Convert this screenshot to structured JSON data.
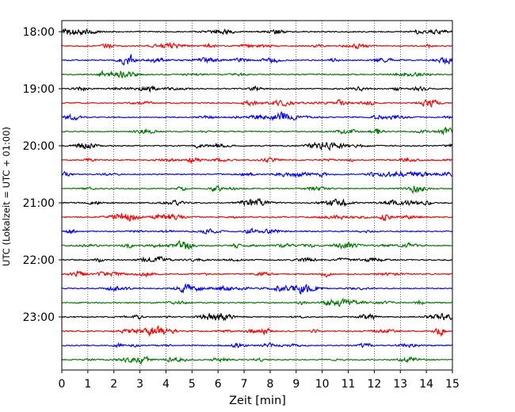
{
  "chart_data": {
    "type": "line",
    "title": "",
    "xlabel": "Zeit  [min]",
    "ylabel": "UTC (Lokalzeit = UTC + 01:00)",
    "xlim": [
      0,
      15
    ],
    "x_ticks": [
      0,
      1,
      2,
      3,
      4,
      5,
      6,
      7,
      8,
      9,
      10,
      11,
      12,
      13,
      14,
      15
    ],
    "y_tick_labels": [
      "18:00",
      "19:00",
      "20:00",
      "21:00",
      "22:00",
      "23:00"
    ],
    "grid": "vertical dotted lines at each minute",
    "trace_interval_min": 15,
    "trace_colors": [
      "#000000",
      "#ff0000",
      "#0000ff",
      "#007700"
    ],
    "traces": [
      {
        "start": "18:00",
        "color": "#000000"
      },
      {
        "start": "18:15",
        "color": "#ff0000"
      },
      {
        "start": "18:30",
        "color": "#0000ff"
      },
      {
        "start": "18:45",
        "color": "#007700"
      },
      {
        "start": "19:00",
        "color": "#000000"
      },
      {
        "start": "19:15",
        "color": "#ff0000"
      },
      {
        "start": "19:30",
        "color": "#0000ff"
      },
      {
        "start": "19:45",
        "color": "#007700"
      },
      {
        "start": "20:00",
        "color": "#000000"
      },
      {
        "start": "20:15",
        "color": "#ff0000"
      },
      {
        "start": "20:30",
        "color": "#0000ff"
      },
      {
        "start": "20:45",
        "color": "#007700"
      },
      {
        "start": "21:00",
        "color": "#000000"
      },
      {
        "start": "21:15",
        "color": "#ff0000"
      },
      {
        "start": "21:30",
        "color": "#0000ff"
      },
      {
        "start": "21:45",
        "color": "#007700"
      },
      {
        "start": "22:00",
        "color": "#000000"
      },
      {
        "start": "22:15",
        "color": "#ff0000"
      },
      {
        "start": "22:30",
        "color": "#0000ff"
      },
      {
        "start": "22:45",
        "color": "#007700"
      },
      {
        "start": "23:00",
        "color": "#000000"
      },
      {
        "start": "23:15",
        "color": "#ff0000"
      },
      {
        "start": "23:30",
        "color": "#0000ff"
      },
      {
        "start": "23:45",
        "color": "#007700"
      }
    ]
  }
}
